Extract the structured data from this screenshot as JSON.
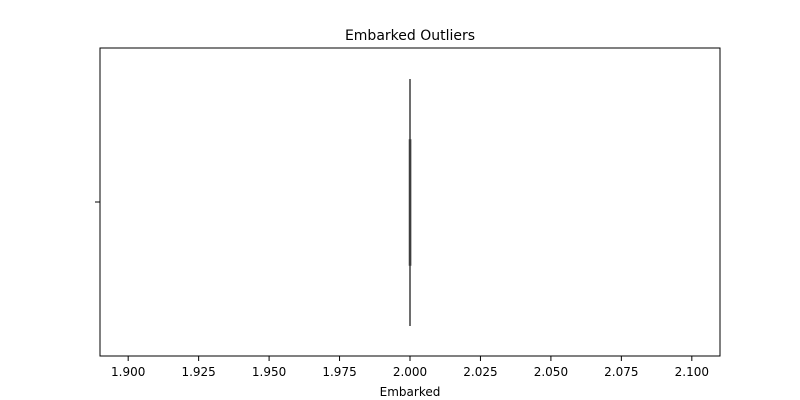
{
  "chart_data": {
    "type": "box",
    "title": "Embarked Outliers",
    "xlabel": "Embarked",
    "ylabel": "",
    "orientation": "horizontal",
    "xlim": [
      1.89,
      2.11
    ],
    "xticks": [
      1.9,
      1.925,
      1.95,
      1.975,
      2.0,
      2.025,
      2.05,
      2.075,
      2.1
    ],
    "xtick_labels": [
      "1.900",
      "1.925",
      "1.950",
      "1.975",
      "2.000",
      "2.025",
      "2.050",
      "2.075",
      "2.100"
    ],
    "grid": false,
    "box": {
      "min": 2.0,
      "q1": 2.0,
      "median": 2.0,
      "q3": 2.0,
      "max": 2.0,
      "outliers": []
    },
    "colors": {
      "box_edge": "#3f3f3f",
      "axis": "#000000"
    }
  }
}
